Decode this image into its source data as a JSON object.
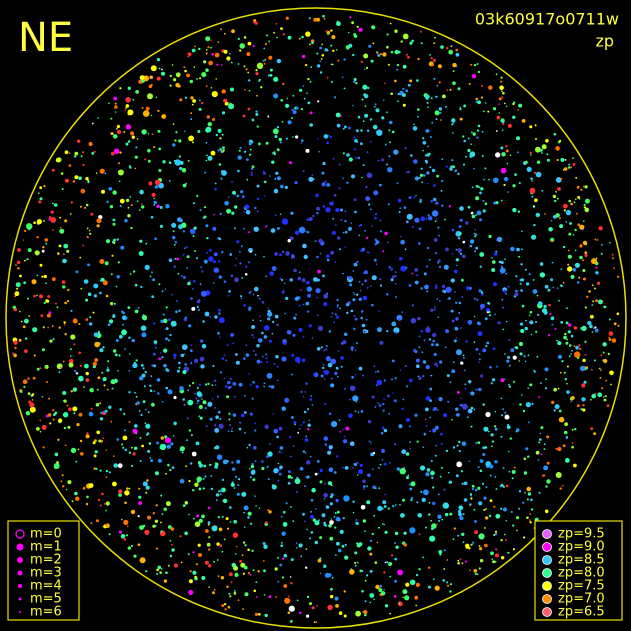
{
  "header": {
    "title": "NE",
    "frame_id": "03k60917o0711w",
    "quantity": "zp"
  },
  "magnitude_legend": {
    "color": "#ff00ff",
    "items": [
      "m=0",
      "m=1",
      "m=2",
      "m=3",
      "m=4",
      "m=5",
      "m=6"
    ]
  },
  "zp_legend": {
    "items": [
      {
        "label": "zp=9.5",
        "color": "#e060ff"
      },
      {
        "label": "zp=9.0",
        "color": "#ff00ff"
      },
      {
        "label": "zp=8.5",
        "color": "#30c8ff"
      },
      {
        "label": "zp=8.0",
        "color": "#30ff90"
      },
      {
        "label": "zp=7.5",
        "color": "#ffff00"
      },
      {
        "label": "zp=7.0",
        "color": "#ff8c00"
      },
      {
        "label": "zp=6.5",
        "color": "#ff6070"
      }
    ]
  }
}
